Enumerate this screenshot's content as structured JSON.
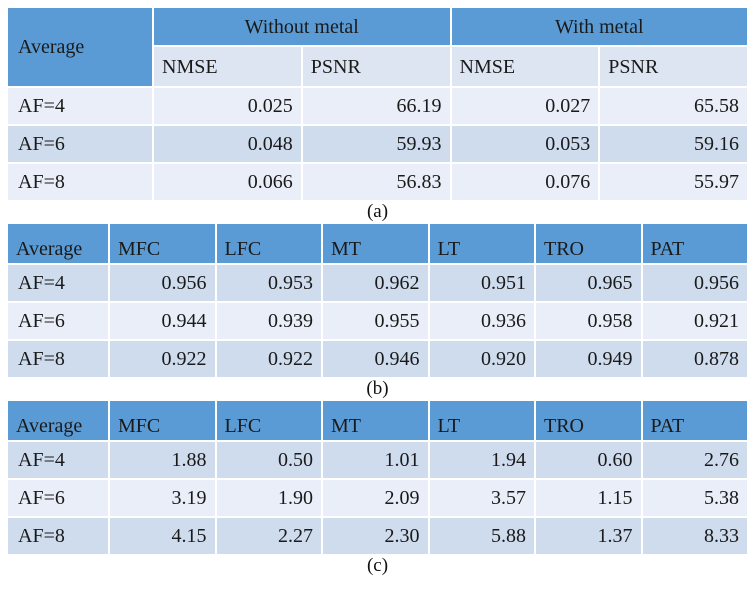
{
  "colors": {
    "header_blue": "#5b9bd5",
    "subheader_row": "#dce5f1",
    "band_light": "#e9eef8",
    "band_dark": "#cedcee",
    "text": "#1a1a1a",
    "background": "#ffffff"
  },
  "table_a": {
    "corner_label": "Average",
    "groups": [
      "Without metal",
      "With metal"
    ],
    "subheaders": [
      "NMSE",
      "PSNR",
      "NMSE",
      "PSNR"
    ],
    "rows": [
      {
        "label": "AF=4",
        "values": [
          "0.025",
          "66.19",
          "0.027",
          "65.58"
        ]
      },
      {
        "label": "AF=6",
        "values": [
          "0.048",
          "59.93",
          "0.053",
          "59.16"
        ]
      },
      {
        "label": "AF=8",
        "values": [
          "0.066",
          "56.83",
          "0.076",
          "55.97"
        ]
      }
    ],
    "caption": "(a)"
  },
  "table_b": {
    "headers": [
      "Average",
      "MFC",
      "LFC",
      "MT",
      "LT",
      "TRO",
      "PAT"
    ],
    "rows": [
      {
        "label": "AF=4",
        "values": [
          "0.956",
          "0.953",
          "0.962",
          "0.951",
          "0.965",
          "0.956"
        ]
      },
      {
        "label": "AF=6",
        "values": [
          "0.944",
          "0.939",
          "0.955",
          "0.936",
          "0.958",
          "0.921"
        ]
      },
      {
        "label": "AF=8",
        "values": [
          "0.922",
          "0.922",
          "0.946",
          "0.920",
          "0.949",
          "0.878"
        ]
      }
    ],
    "caption": "(b)"
  },
  "table_c": {
    "headers": [
      "Average",
      "MFC",
      "LFC",
      "MT",
      "LT",
      "TRO",
      "PAT"
    ],
    "rows": [
      {
        "label": "AF=4",
        "values": [
          "1.88",
          "0.50",
          "1.01",
          "1.94",
          "0.60",
          "2.76"
        ]
      },
      {
        "label": "AF=6",
        "values": [
          "3.19",
          "1.90",
          "2.09",
          "3.57",
          "1.15",
          "5.38"
        ]
      },
      {
        "label": "AF=8",
        "values": [
          "4.15",
          "2.27",
          "2.30",
          "5.88",
          "1.37",
          "8.33"
        ]
      }
    ],
    "caption": "(c)"
  }
}
